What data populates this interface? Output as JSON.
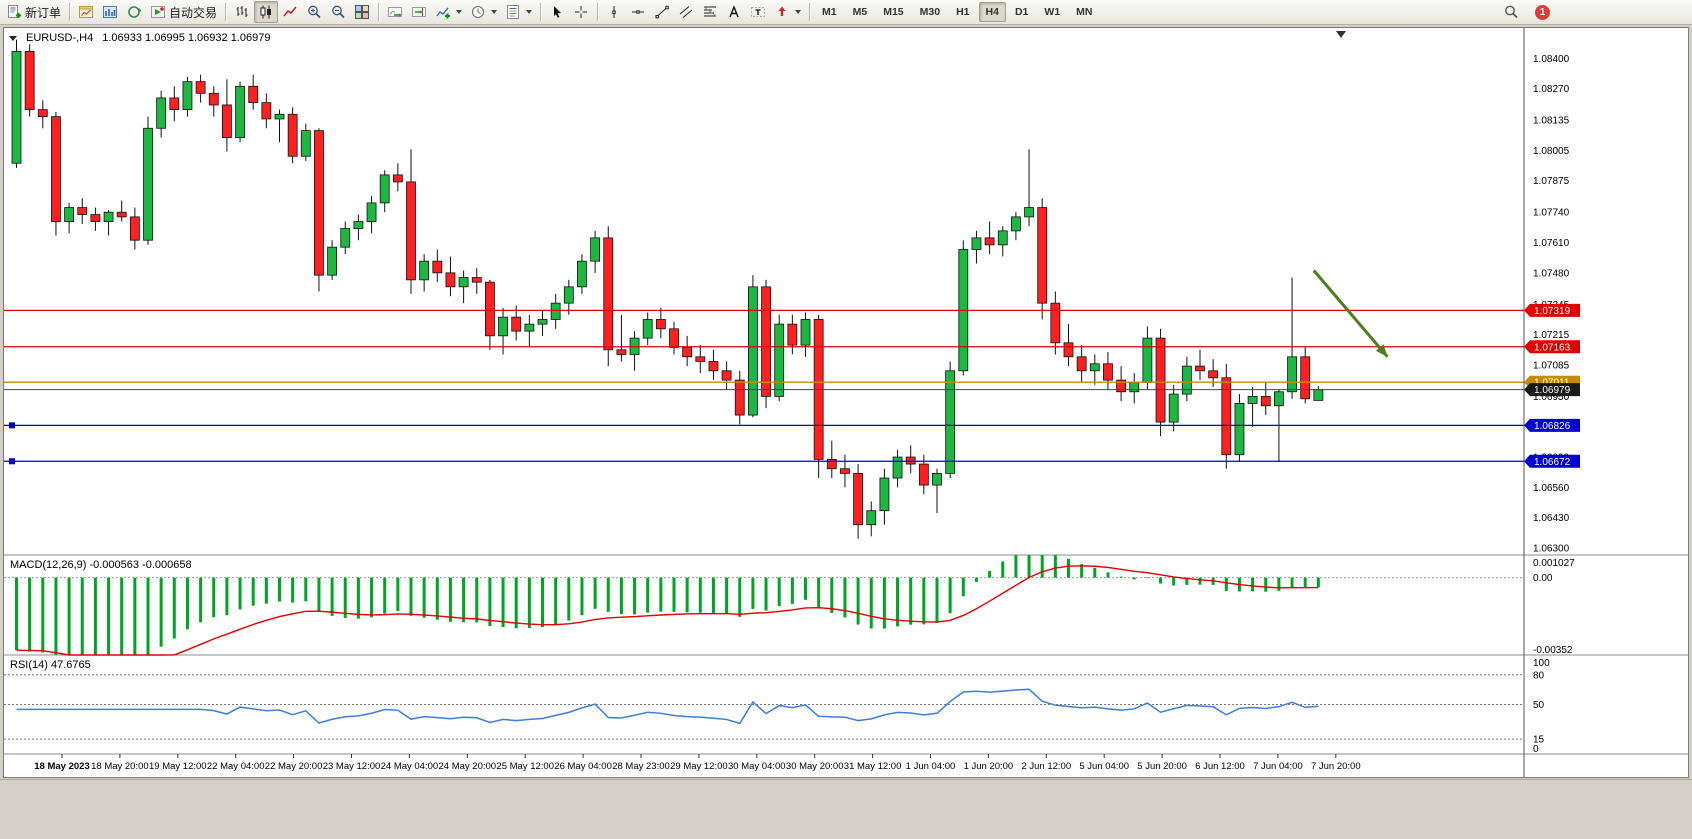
{
  "toolbar": {
    "items": [
      {
        "name": "new-order-button",
        "icon": "new-order-icon",
        "label": "新订单"
      },
      {
        "sep": true
      },
      {
        "name": "chart-window-button",
        "icon": "chart-window-icon"
      },
      {
        "name": "market-watch-button",
        "icon": "market-watch-icon"
      },
      {
        "name": "refresh-button",
        "icon": "refresh-icon"
      },
      {
        "name": "autotrading-button",
        "icon": "autotrading-icon",
        "label": "自动交易"
      },
      {
        "sep": true
      },
      {
        "name": "bar-chart-button",
        "icon": "bars-icon"
      },
      {
        "name": "candlestick-chart-button",
        "icon": "candles-icon",
        "active": true
      },
      {
        "name": "line-chart-button",
        "icon": "line-chart-icon"
      },
      {
        "name": "zoom-in-button",
        "icon": "zoom-in-icon"
      },
      {
        "name": "zoom-out-button",
        "icon": "zoom-out-icon"
      },
      {
        "name": "tile-windows-button",
        "icon": "tile-windows-icon"
      },
      {
        "sep": true
      },
      {
        "name": "auto-scroll-button",
        "icon": "auto-scroll-icon"
      },
      {
        "name": "chart-shift-button",
        "icon": "chart-shift-icon"
      },
      {
        "name": "indicators-button",
        "icon": "indicators-icon",
        "dropdown": true
      },
      {
        "name": "periods-button",
        "icon": "clock-icon",
        "dropdown": true
      },
      {
        "name": "templates-button",
        "icon": "template-icon",
        "dropdown": true
      },
      {
        "sep": true
      },
      {
        "name": "cursor-button",
        "icon": "cursor-icon"
      },
      {
        "name": "crosshair-button",
        "icon": "crosshair-icon"
      },
      {
        "sep": true
      },
      {
        "name": "vertical-line-button",
        "icon": "vline-icon"
      },
      {
        "name": "horizontal-line-button",
        "icon": "hline-icon"
      },
      {
        "name": "trendline-button",
        "icon": "trendline-icon"
      },
      {
        "name": "channel-button",
        "icon": "channel-icon"
      },
      {
        "name": "fibonacci-button",
        "icon": "fibo-icon"
      },
      {
        "name": "text-button",
        "icon": "text-icon"
      },
      {
        "name": "label-button",
        "icon": "label-icon"
      },
      {
        "name": "arrows-button",
        "icon": "arrows-icon",
        "dropdown": true
      }
    ],
    "timeframes": [
      "M1",
      "M5",
      "M15",
      "M30",
      "H1",
      "H4",
      "D1",
      "W1",
      "MN"
    ],
    "active_timeframe": "H4",
    "notification_count": "1"
  },
  "chart": {
    "title": "EURUSD-,H4",
    "ohlc": "1.06933 1.06995 1.06932 1.06979"
  },
  "chart_data": {
    "type": "candlestick",
    "symbol": "EURUSD-",
    "period": "H4",
    "colors": {
      "bull": "#1cb841",
      "bear": "#ff2020",
      "wick": "#111111",
      "macd_hist": "#00a524",
      "macd_signal": "#e60000",
      "rsi_line": "#3d7edb"
    },
    "price_axis": {
      "min": 1.0627,
      "max": 1.0853,
      "ticks": [
        "1.08400",
        "1.08270",
        "1.08135",
        "1.08005",
        "1.07875",
        "1.07740",
        "1.07610",
        "1.07480",
        "1.07345",
        "1.07215",
        "1.07085",
        "1.06950",
        "1.06820",
        "1.06690",
        "1.06560",
        "1.06430",
        "1.06300"
      ]
    },
    "candles": [
      [
        1.0795,
        1.0848,
        1.0793,
        1.0843
      ],
      [
        1.0843,
        1.0846,
        1.0815,
        1.0818
      ],
      [
        1.0818,
        1.0822,
        1.081,
        1.0815
      ],
      [
        1.0815,
        1.0817,
        1.0764,
        1.077
      ],
      [
        1.077,
        1.0778,
        1.0765,
        1.0776
      ],
      [
        1.0776,
        1.078,
        1.0769,
        1.0773
      ],
      [
        1.0773,
        1.0776,
        1.0766,
        1.077
      ],
      [
        1.077,
        1.0775,
        1.0764,
        1.0774
      ],
      [
        1.0774,
        1.0779,
        1.077,
        1.0772
      ],
      [
        1.0772,
        1.0776,
        1.0758,
        1.0762
      ],
      [
        1.0762,
        1.0815,
        1.076,
        1.081
      ],
      [
        1.081,
        1.0826,
        1.0806,
        1.0823
      ],
      [
        1.0823,
        1.0828,
        1.0813,
        1.0818
      ],
      [
        1.0818,
        1.0832,
        1.0815,
        1.083
      ],
      [
        1.083,
        1.0833,
        1.0821,
        1.0825
      ],
      [
        1.0825,
        1.0828,
        1.0815,
        1.082
      ],
      [
        1.082,
        1.0831,
        1.08,
        1.0806
      ],
      [
        1.0806,
        1.083,
        1.0804,
        1.0828
      ],
      [
        1.0828,
        1.0833,
        1.0818,
        1.0821
      ],
      [
        1.0821,
        1.0825,
        1.081,
        1.0814
      ],
      [
        1.0814,
        1.0818,
        1.0804,
        1.0816
      ],
      [
        1.0816,
        1.0819,
        1.0795,
        1.0798
      ],
      [
        1.0798,
        1.0812,
        1.0796,
        1.0809
      ],
      [
        1.0809,
        1.081,
        1.074,
        1.0747
      ],
      [
        1.0747,
        1.0762,
        1.0745,
        1.0759
      ],
      [
        1.0759,
        1.077,
        1.0756,
        1.0767
      ],
      [
        1.0767,
        1.0773,
        1.0762,
        1.077
      ],
      [
        1.077,
        1.0781,
        1.0765,
        1.0778
      ],
      [
        1.0778,
        1.0792,
        1.0774,
        1.079
      ],
      [
        1.079,
        1.0795,
        1.0783,
        1.0787
      ],
      [
        1.0787,
        1.0801,
        1.0739,
        1.0745
      ],
      [
        1.0745,
        1.0756,
        1.074,
        1.0753
      ],
      [
        1.0753,
        1.0758,
        1.0744,
        1.0748
      ],
      [
        1.0748,
        1.0755,
        1.0738,
        1.0742
      ],
      [
        1.0742,
        1.0749,
        1.0735,
        1.0746
      ],
      [
        1.0746,
        1.075,
        1.0739,
        1.0744
      ],
      [
        1.0744,
        1.0745,
        1.0715,
        1.0721
      ],
      [
        1.0721,
        1.0733,
        1.0713,
        1.0729
      ],
      [
        1.0729,
        1.0734,
        1.0719,
        1.0723
      ],
      [
        1.0723,
        1.073,
        1.0716,
        1.0726
      ],
      [
        1.0726,
        1.0732,
        1.0721,
        1.0728
      ],
      [
        1.0728,
        1.0739,
        1.0724,
        1.0735
      ],
      [
        1.0735,
        1.0745,
        1.073,
        1.0742
      ],
      [
        1.0742,
        1.0756,
        1.0739,
        1.0753
      ],
      [
        1.0753,
        1.0766,
        1.0748,
        1.0763
      ],
      [
        1.0763,
        1.0768,
        1.0708,
        1.0715
      ],
      [
        1.0715,
        1.073,
        1.071,
        1.0713
      ],
      [
        1.0713,
        1.0723,
        1.0706,
        1.072
      ],
      [
        1.072,
        1.0731,
        1.0717,
        1.0728
      ],
      [
        1.0728,
        1.0733,
        1.072,
        1.0724
      ],
      [
        1.0724,
        1.0727,
        1.0713,
        1.0716
      ],
      [
        1.0716,
        1.0721,
        1.0708,
        1.0712
      ],
      [
        1.0712,
        1.0717,
        1.0705,
        1.071
      ],
      [
        1.071,
        1.0715,
        1.0702,
        1.0706
      ],
      [
        1.0706,
        1.071,
        1.0698,
        1.0702
      ],
      [
        1.0702,
        1.0706,
        1.0683,
        1.0687
      ],
      [
        1.0687,
        1.0747,
        1.0686,
        1.0742
      ],
      [
        1.0742,
        1.0745,
        1.069,
        1.0695
      ],
      [
        1.0695,
        1.073,
        1.0693,
        1.0726
      ],
      [
        1.0726,
        1.073,
        1.0713,
        1.0717
      ],
      [
        1.0717,
        1.0731,
        1.0712,
        1.0728
      ],
      [
        1.0728,
        1.073,
        1.066,
        1.0668
      ],
      [
        1.0668,
        1.0676,
        1.066,
        1.0664
      ],
      [
        1.0664,
        1.067,
        1.0656,
        1.0662
      ],
      [
        1.0662,
        1.0666,
        1.0634,
        1.064
      ],
      [
        1.064,
        1.065,
        1.0635,
        1.0646
      ],
      [
        1.0646,
        1.0664,
        1.064,
        1.066
      ],
      [
        1.066,
        1.0672,
        1.0656,
        1.0669
      ],
      [
        1.0669,
        1.0674,
        1.0662,
        1.0666
      ],
      [
        1.0666,
        1.067,
        1.0653,
        1.0657
      ],
      [
        1.0657,
        1.0664,
        1.0645,
        1.0662
      ],
      [
        1.0662,
        1.071,
        1.066,
        1.0706
      ],
      [
        1.0706,
        1.0762,
        1.0704,
        1.0758
      ],
      [
        1.0758,
        1.0766,
        1.0752,
        1.0763
      ],
      [
        1.0763,
        1.077,
        1.0756,
        1.076
      ],
      [
        1.076,
        1.0768,
        1.0755,
        1.0766
      ],
      [
        1.0766,
        1.0774,
        1.0762,
        1.0772
      ],
      [
        1.0772,
        1.0801,
        1.0768,
        1.0776
      ],
      [
        1.0776,
        1.078,
        1.0728,
        1.0735
      ],
      [
        1.0735,
        1.074,
        1.0713,
        1.0718
      ],
      [
        1.0718,
        1.0726,
        1.0708,
        1.0712
      ],
      [
        1.0712,
        1.0717,
        1.0701,
        1.0706
      ],
      [
        1.0706,
        1.0713,
        1.07,
        1.0709
      ],
      [
        1.0709,
        1.0714,
        1.0698,
        1.0702
      ],
      [
        1.0702,
        1.0708,
        1.0693,
        1.0697
      ],
      [
        1.0697,
        1.0705,
        1.0692,
        1.0701
      ],
      [
        1.0701,
        1.0725,
        1.0698,
        1.072
      ],
      [
        1.072,
        1.0724,
        1.0678,
        1.0684
      ],
      [
        1.0684,
        1.07,
        1.068,
        1.0696
      ],
      [
        1.0696,
        1.0712,
        1.0693,
        1.0708
      ],
      [
        1.0708,
        1.0715,
        1.0702,
        1.0706
      ],
      [
        1.0706,
        1.0711,
        1.0699,
        1.0703
      ],
      [
        1.0703,
        1.0709,
        1.0664,
        1.067
      ],
      [
        1.067,
        1.0696,
        1.0667,
        1.0692
      ],
      [
        1.0692,
        1.0699,
        1.0682,
        1.0695
      ],
      [
        1.0695,
        1.0701,
        1.0687,
        1.0691
      ],
      [
        1.0691,
        1.0698,
        1.0667,
        1.0697
      ],
      [
        1.0697,
        1.0746,
        1.0694,
        1.0712
      ],
      [
        1.0712,
        1.0716,
        1.0692,
        1.0694
      ],
      [
        1.06933,
        1.06995,
        1.06932,
        1.06979
      ]
    ],
    "levels": [
      {
        "price": 1.07319,
        "label": "1.07319",
        "color": "#e00000"
      },
      {
        "price": 1.07163,
        "label": "1.07163",
        "color": "#e00000"
      },
      {
        "price": 1.07011,
        "label": "1.07011",
        "color": "#c98a00"
      },
      {
        "price": 1.06826,
        "label": "1.06826",
        "color": "#0000d4",
        "handles": true
      },
      {
        "price": 1.06672,
        "label": "1.06672",
        "color": "#0000d4",
        "handles": true
      }
    ],
    "current_price": {
      "value": 1.06979,
      "label": "1.06979",
      "color": "#1a1a1a"
    },
    "annotation_arrow": {
      "from_bar": 99,
      "from_price": 1.0749,
      "to_bar": 104.6,
      "to_price": 1.0712,
      "color": "#4f7d1c"
    },
    "time_axis": [
      "18 May 2023",
      "18 May 20:00",
      "19 May 12:00",
      "22 May 04:00",
      "22 May 20:00",
      "23 May 12:00",
      "24 May 04:00",
      "24 May 20:00",
      "25 May 12:00",
      "26 May 04:00",
      "28 May 23:00",
      "29 May 12:00",
      "30 May 04:00",
      "30 May 20:00",
      "31 May 12:00",
      "1 Jun 04:00",
      "1 Jun 20:00",
      "2 Jun 12:00",
      "5 Jun 04:00",
      "5 Jun 20:00",
      "6 Jun 12:00",
      "7 Jun 04:00",
      "7 Jun 20:00"
    ],
    "indicators": {
      "macd": {
        "label": "MACD(12,26,9)",
        "values_text": "-0.000563 -0.000658",
        "params": [
          12,
          26,
          9
        ],
        "axis_labels": [
          "0.001027",
          "0.00",
          "-0.00352"
        ],
        "range": {
          "min": -0.00352,
          "max": 0.001027
        }
      },
      "rsi": {
        "label": "RSI(14)",
        "value_text": "47.6765",
        "period": 14,
        "axis_labels": [
          "100",
          "80",
          "50",
          "15",
          "0"
        ],
        "dashed_levels": [
          80,
          50,
          15
        ],
        "range": {
          "min": 0,
          "max": 100
        }
      }
    }
  }
}
